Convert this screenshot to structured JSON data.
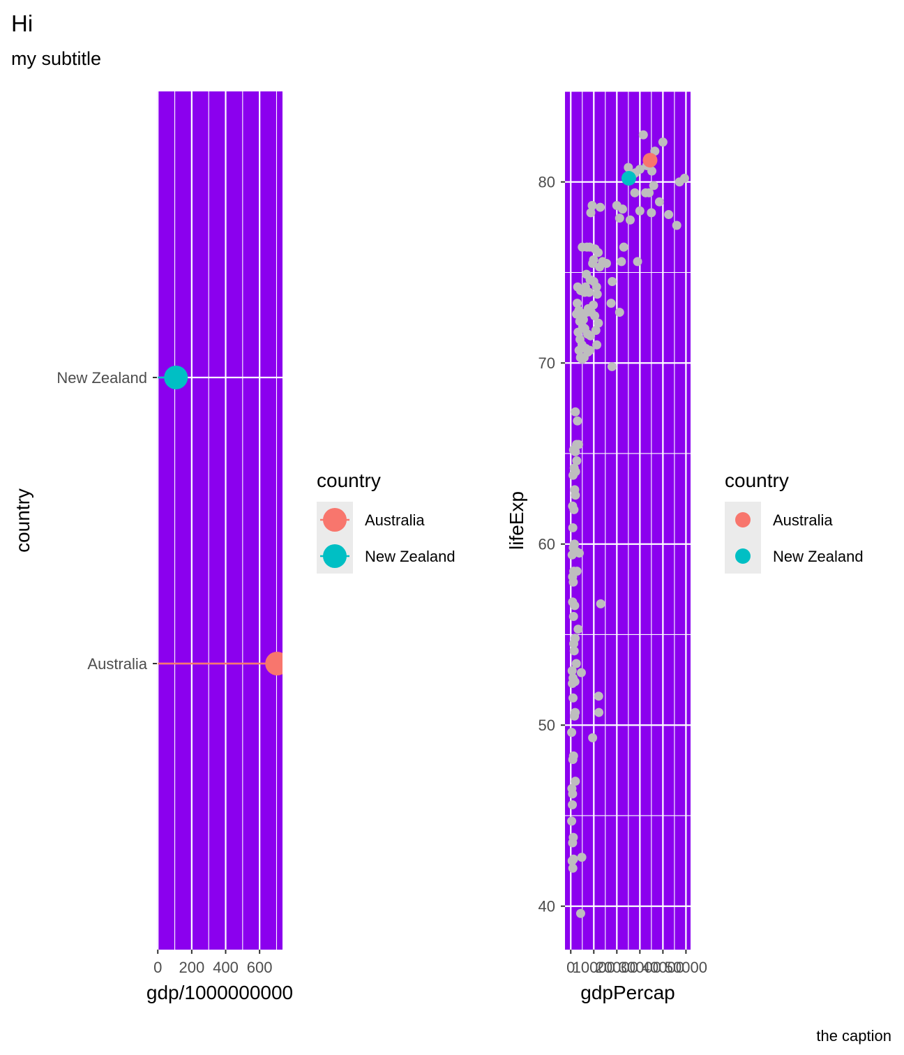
{
  "title": "Hi",
  "subtitle": "my subtitle",
  "caption": "the caption",
  "colors": {
    "panel_background": "#8B00EE",
    "grid": "#FFFFFF",
    "australia": "#F8766D",
    "new_zealand": "#00BFC4",
    "gray_points": "#BEBEBE",
    "legend_key_background": "#EBEBEB"
  },
  "chart_data": [
    {
      "type": "lollipop",
      "xlabel": "gdp/1000000000",
      "ylabel": "country",
      "xlim": [
        -5,
        735
      ],
      "x_ticks": [
        0,
        200,
        400,
        600
      ],
      "categories": [
        "Australia",
        "New Zealand"
      ],
      "series": [
        {
          "name": "Australia",
          "x": 703,
          "y": "Australia"
        },
        {
          "name": "New Zealand",
          "x": 107,
          "y": "New Zealand"
        }
      ],
      "legend": {
        "title": "country",
        "position": "right",
        "entries": [
          "Australia",
          "New Zealand"
        ]
      },
      "grid": true
    },
    {
      "type": "scatter",
      "xlabel": "gdpPercap",
      "ylabel": "lifeExp",
      "xlim": [
        -2500,
        52000
      ],
      "ylim": [
        37.6,
        85
      ],
      "x_ticks": [
        0,
        10000,
        20000,
        30000,
        40000,
        50000
      ],
      "x_tick_labels": [
        "0",
        "10000",
        "20000",
        "30000",
        "40000",
        "50000"
      ],
      "y_ticks": [
        40,
        50,
        60,
        70,
        80
      ],
      "background_points": [
        [
          31500,
          82.6
        ],
        [
          40000,
          82.2
        ],
        [
          36500,
          81.7
        ],
        [
          35200,
          80.6
        ],
        [
          33000,
          80.9
        ],
        [
          30000,
          80.7
        ],
        [
          28000,
          80.5
        ],
        [
          25000,
          80.8
        ],
        [
          27000,
          80.4
        ],
        [
          47200,
          80.0
        ],
        [
          49400,
          80.2
        ],
        [
          36000,
          79.8
        ],
        [
          32500,
          79.4
        ],
        [
          34000,
          79.4
        ],
        [
          27800,
          79.4
        ],
        [
          20000,
          78.7
        ],
        [
          22500,
          78.5
        ],
        [
          38500,
          78.9
        ],
        [
          42500,
          78.2
        ],
        [
          30000,
          78.4
        ],
        [
          35000,
          78.3
        ],
        [
          9300,
          78.7
        ],
        [
          12800,
          78.6
        ],
        [
          8700,
          78.3
        ],
        [
          21200,
          78.0
        ],
        [
          25800,
          77.9
        ],
        [
          46000,
          77.6
        ],
        [
          5000,
          76.4
        ],
        [
          7000,
          76.4
        ],
        [
          8200,
          76.4
        ],
        [
          10500,
          76.3
        ],
        [
          11900,
          76.1
        ],
        [
          23000,
          76.4
        ],
        [
          9900,
          75.7
        ],
        [
          13800,
          75.6
        ],
        [
          15500,
          75.5
        ],
        [
          12500,
          75.3
        ],
        [
          9500,
          75.5
        ],
        [
          22000,
          75.6
        ],
        [
          29000,
          75.6
        ],
        [
          6800,
          74.9
        ],
        [
          8400,
          74.6
        ],
        [
          10000,
          74.5
        ],
        [
          6400,
          74.2
        ],
        [
          11200,
          74.2
        ],
        [
          18000,
          74.5
        ],
        [
          3000,
          74.2
        ],
        [
          4300,
          74.0
        ],
        [
          6000,
          73.9
        ],
        [
          8000,
          73.9
        ],
        [
          11500,
          73.8
        ],
        [
          2800,
          73.3
        ],
        [
          7600,
          73.0
        ],
        [
          9800,
          73.2
        ],
        [
          17500,
          73.3
        ],
        [
          21200,
          72.8
        ],
        [
          3500,
          72.9
        ],
        [
          4600,
          72.6
        ],
        [
          5500,
          72.4
        ],
        [
          6900,
          72.8
        ],
        [
          8900,
          72.8
        ],
        [
          10400,
          72.6
        ],
        [
          12000,
          72.2
        ],
        [
          2500,
          72.7
        ],
        [
          3900,
          72.3
        ],
        [
          5200,
          72.0
        ],
        [
          6100,
          71.9
        ],
        [
          7300,
          71.6
        ],
        [
          8600,
          71.5
        ],
        [
          10900,
          71.8
        ],
        [
          3200,
          71.7
        ],
        [
          4000,
          71.3
        ],
        [
          4900,
          71.0
        ],
        [
          6600,
          70.8
        ],
        [
          8300,
          70.7
        ],
        [
          11300,
          71.0
        ],
        [
          3600,
          70.7
        ],
        [
          4200,
          70.3
        ],
        [
          5000,
          70.2
        ],
        [
          5800,
          70.3
        ],
        [
          7400,
          70.6
        ],
        [
          17900,
          69.8
        ],
        [
          2000,
          67.3
        ],
        [
          2900,
          66.8
        ],
        [
          2500,
          65.5
        ],
        [
          3400,
          65.5
        ],
        [
          1200,
          65.2
        ],
        [
          2000,
          65.1
        ],
        [
          2600,
          64.6
        ],
        [
          1500,
          64.2
        ],
        [
          2100,
          64.0
        ],
        [
          1000,
          63.8
        ],
        [
          1700,
          63.0
        ],
        [
          2000,
          62.7
        ],
        [
          800,
          62.1
        ],
        [
          1400,
          61.9
        ],
        [
          900,
          60.9
        ],
        [
          1600,
          60.0
        ],
        [
          1100,
          59.8
        ],
        [
          2300,
          59.6
        ],
        [
          3700,
          59.5
        ],
        [
          600,
          59.4
        ],
        [
          1300,
          58.5
        ],
        [
          2700,
          58.5
        ],
        [
          800,
          58.2
        ],
        [
          1100,
          57.9
        ],
        [
          13000,
          56.7
        ],
        [
          800,
          56.8
        ],
        [
          1700,
          56.6
        ],
        [
          1200,
          56.0
        ],
        [
          3200,
          55.3
        ],
        [
          1900,
          54.8
        ],
        [
          1300,
          54.5
        ],
        [
          1500,
          54.1
        ],
        [
          2400,
          53.4
        ],
        [
          600,
          53.0
        ],
        [
          4600,
          52.9
        ],
        [
          1000,
          52.6
        ],
        [
          700,
          52.3
        ],
        [
          1800,
          52.4
        ],
        [
          12100,
          51.6
        ],
        [
          1000,
          51.5
        ],
        [
          1900,
          50.7
        ],
        [
          12200,
          50.7
        ],
        [
          1600,
          50.5
        ],
        [
          9500,
          49.3
        ],
        [
          400,
          49.6
        ],
        [
          1200,
          48.3
        ],
        [
          900,
          48.1
        ],
        [
          2000,
          46.9
        ],
        [
          500,
          46.5
        ],
        [
          800,
          46.2
        ],
        [
          700,
          45.6
        ],
        [
          400,
          44.7
        ],
        [
          1100,
          43.8
        ],
        [
          800,
          43.5
        ],
        [
          4800,
          42.7
        ],
        [
          1200,
          42.6
        ],
        [
          600,
          42.5
        ],
        [
          900,
          42.1
        ],
        [
          4300,
          39.6
        ]
      ],
      "highlight_points": [
        {
          "name": "Australia",
          "x": 34435,
          "y": 81.2
        },
        {
          "name": "New Zealand",
          "x": 25185,
          "y": 80.2
        }
      ],
      "legend": {
        "title": "country",
        "position": "right",
        "entries": [
          "Australia",
          "New Zealand"
        ]
      },
      "grid": true
    }
  ]
}
